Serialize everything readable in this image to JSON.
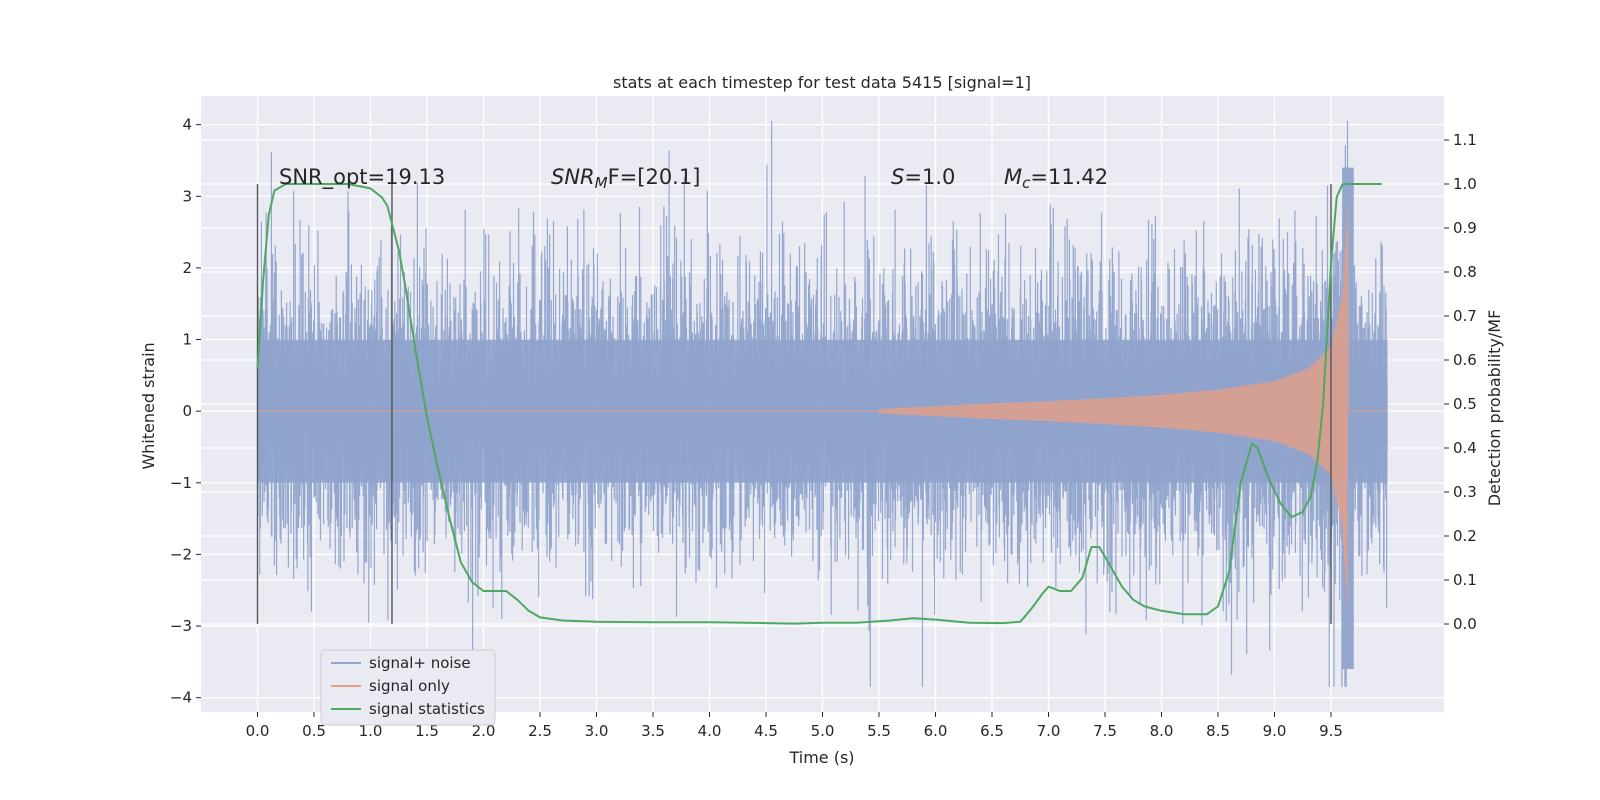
{
  "chart_data": {
    "type": "line",
    "title": "stats at each timestep for test data 5415 [signal=1]",
    "xlabel": "Time (s)",
    "ylabel": "Whitened strain",
    "y2label": "Detection probability/MF",
    "xlim": [
      -0.5,
      10.5
    ],
    "ylim": [
      -4.2,
      4.4
    ],
    "y2lim": [
      -0.2,
      1.2
    ],
    "x_ticks": [
      "0.0",
      "0.5",
      "1.0",
      "1.5",
      "2.0",
      "2.5",
      "3.0",
      "3.5",
      "4.0",
      "4.5",
      "5.0",
      "5.5",
      "6.0",
      "6.5",
      "7.0",
      "7.5",
      "8.0",
      "8.5",
      "9.0",
      "9.5"
    ],
    "y_ticks": [
      "4",
      "3",
      "2",
      "1",
      "0",
      "−1",
      "−2",
      "−3",
      "−4"
    ],
    "y2_ticks": [
      "1.1",
      "1.0",
      "0.9",
      "0.8",
      "0.7",
      "0.6",
      "0.5",
      "0.4",
      "0.3",
      "0.2",
      "0.1",
      "0.0"
    ],
    "grid": true,
    "legend_position": "lower-left",
    "annotations": {
      "snr_opt": "SNR_opt=19.13",
      "snr_mf_sym": "SNR",
      "snr_mf_sub": "M",
      "snr_mf_rest": "F=[20.1]",
      "s_sym": "S",
      "s_rest": "=1.0",
      "mc_sym": "M",
      "mc_sub": "c",
      "mc_rest": "=11.42"
    },
    "vertical_lines_x": [
      0.0,
      1.19,
      9.5
    ],
    "series": [
      {
        "name": "signal+ noise",
        "color": "#8fa3cc",
        "description_values": "noise band, |amplitude| ~1.3 typical, spikes to ~4"
      },
      {
        "name": "signal only",
        "color": "#e0a08a",
        "x": [
          5.5,
          6.0,
          6.5,
          7.0,
          7.5,
          8.0,
          8.5,
          9.0,
          9.3,
          9.5,
          9.6,
          9.65
        ],
        "envelope": [
          0.03,
          0.07,
          0.11,
          0.14,
          0.18,
          0.23,
          0.3,
          0.42,
          0.6,
          0.9,
          1.6,
          2.9
        ]
      },
      {
        "name": "signal statistics",
        "color": "#4ea860",
        "x": [
          0.0,
          0.05,
          0.1,
          0.15,
          0.25,
          0.4,
          0.6,
          0.8,
          1.0,
          1.1,
          1.15,
          1.2,
          1.25,
          1.3,
          1.4,
          1.5,
          1.6,
          1.7,
          1.8,
          1.9,
          2.0,
          2.1,
          2.2,
          2.3,
          2.4,
          2.5,
          2.7,
          3.0,
          3.5,
          4.0,
          4.5,
          4.75,
          5.0,
          5.3,
          5.6,
          5.8,
          6.0,
          6.3,
          6.6,
          6.75,
          6.85,
          6.95,
          7.0,
          7.1,
          7.2,
          7.3,
          7.38,
          7.45,
          7.55,
          7.65,
          7.75,
          7.85,
          8.0,
          8.2,
          8.4,
          8.5,
          8.6,
          8.7,
          8.8,
          8.85,
          8.95,
          9.05,
          9.15,
          9.25,
          9.32,
          9.38,
          9.43,
          9.47,
          9.5,
          9.55,
          9.6,
          9.65,
          9.8,
          9.95
        ],
        "y": [
          0.58,
          0.78,
          0.93,
          0.985,
          1.0,
          1.0,
          1.0,
          1.0,
          0.99,
          0.97,
          0.95,
          0.9,
          0.85,
          0.78,
          0.62,
          0.47,
          0.35,
          0.24,
          0.14,
          0.095,
          0.075,
          0.075,
          0.075,
          0.055,
          0.03,
          0.015,
          0.008,
          0.005,
          0.004,
          0.004,
          0.002,
          0.001,
          0.003,
          0.003,
          0.008,
          0.013,
          0.01,
          0.003,
          0.002,
          0.005,
          0.035,
          0.07,
          0.085,
          0.075,
          0.075,
          0.105,
          0.175,
          0.175,
          0.13,
          0.085,
          0.055,
          0.04,
          0.03,
          0.022,
          0.022,
          0.04,
          0.12,
          0.32,
          0.41,
          0.4,
          0.33,
          0.275,
          0.243,
          0.255,
          0.29,
          0.37,
          0.5,
          0.68,
          0.82,
          0.97,
          0.999,
          1.0,
          1.0,
          1.0
        ]
      }
    ]
  }
}
